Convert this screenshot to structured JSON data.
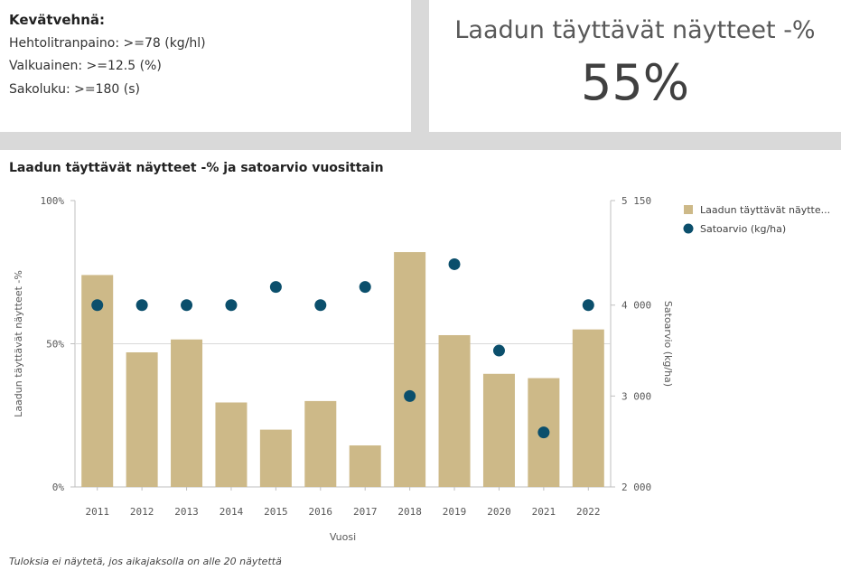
{
  "criteria": {
    "title": "Kevätvehnä:",
    "lines": [
      "Hehtolitranpaino: >=78 (kg/hl)",
      "Valkuainen: >=12.5 (%)",
      "Sakoluku: >=180 (s)"
    ]
  },
  "kpi": {
    "label": "Laadun täyttävät näytteet -%",
    "value": "55%"
  },
  "footnote": "Tuloksia ei näytetä, jos aikajaksolla on alle 20 näytettä",
  "colors": {
    "bar": "#cdb988",
    "dot": "#0b4f6c"
  },
  "chart_data": {
    "type": "bar+scatter",
    "title": "Laadun täyttävät näytteet -% ja satoarvio vuosittain",
    "categories": [
      "2011",
      "2012",
      "2013",
      "2014",
      "2015",
      "2016",
      "2017",
      "2018",
      "2019",
      "2020",
      "2021",
      "2022"
    ],
    "xlabel": "Vuosi",
    "ylabel_left": "Laadun täyttävät näytteet -%",
    "ylabel_right": "Satoarvio (kg/ha)",
    "ylim_left": [
      0,
      100
    ],
    "ylim_right": [
      2000,
      5150
    ],
    "left_ticks": [
      {
        "v": 0,
        "label": "0%"
      },
      {
        "v": 50,
        "label": "50%"
      },
      {
        "v": 100,
        "label": "100%"
      }
    ],
    "right_ticks": [
      {
        "v": 2000,
        "label": "2 000"
      },
      {
        "v": 3000,
        "label": "3 000"
      },
      {
        "v": 4000,
        "label": "4 000"
      },
      {
        "v": 5150,
        "label": "5 150"
      }
    ],
    "series": [
      {
        "name": "Laadun täyttävät näytte...",
        "type": "bar",
        "axis": "left",
        "values": [
          74,
          47,
          51.5,
          29.5,
          20,
          30,
          14.5,
          82,
          53,
          39.5,
          38,
          55
        ]
      },
      {
        "name": "Satoarvio (kg/ha)",
        "type": "scatter",
        "axis": "right",
        "values": [
          4000,
          4000,
          4000,
          4000,
          4200,
          4000,
          4200,
          3000,
          4450,
          3500,
          2600,
          4000
        ]
      }
    ],
    "legend_position": "top-right"
  }
}
